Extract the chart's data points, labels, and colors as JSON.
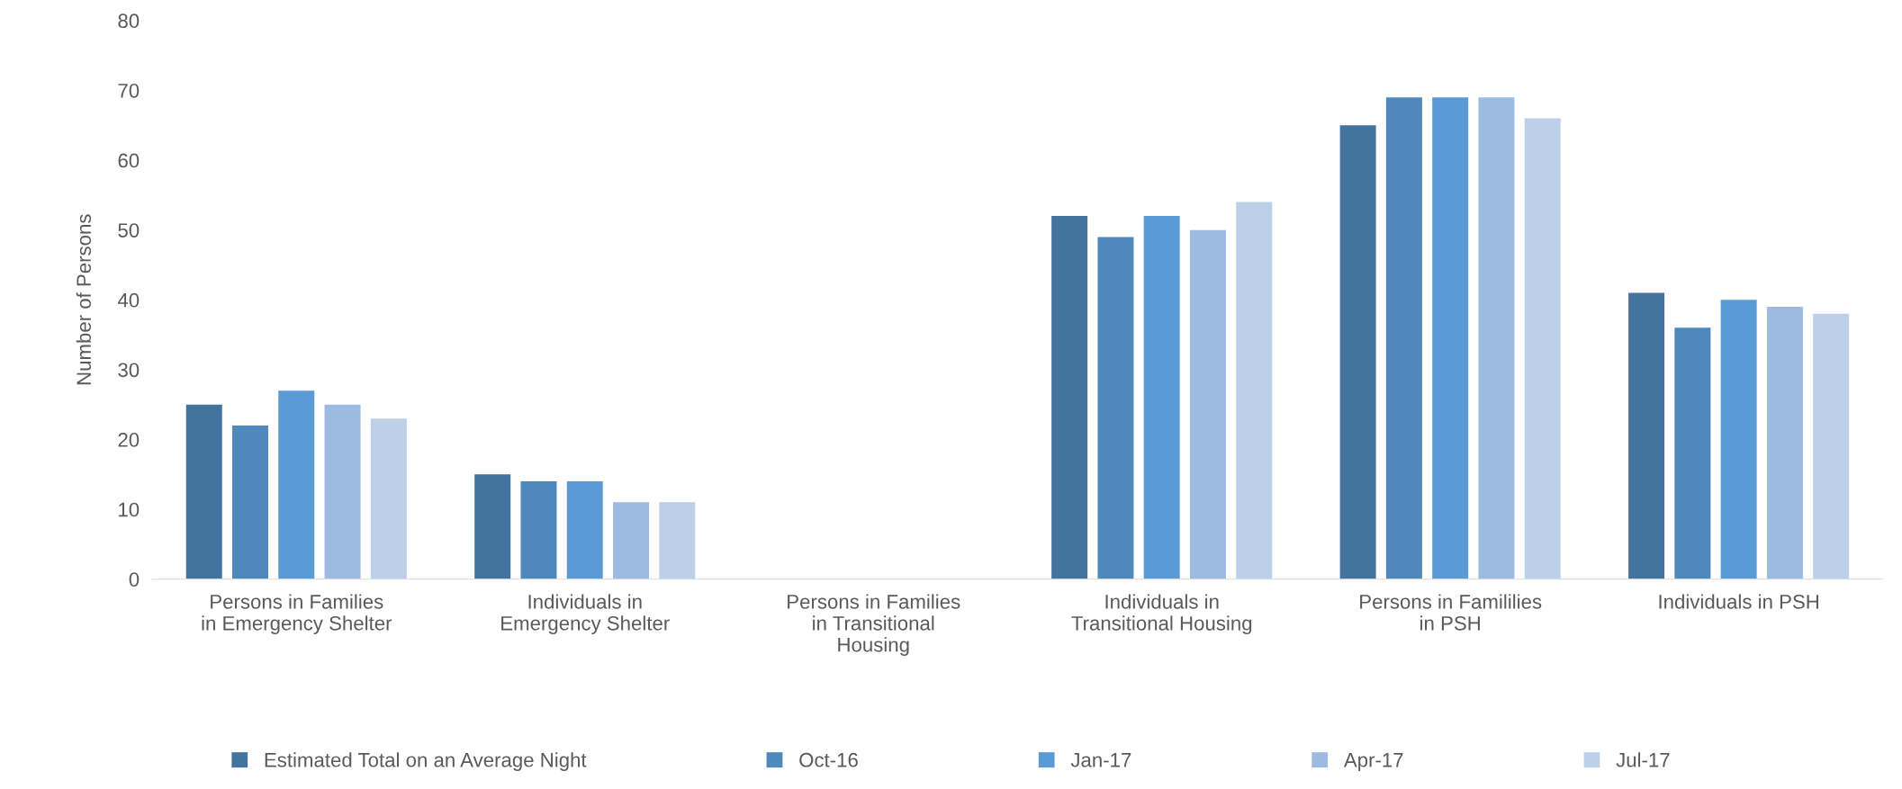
{
  "chart_data": {
    "type": "bar",
    "ylabel": "Number of Persons",
    "categories": [
      "Persons in Families in Emergency Shelter",
      "Individuals in Emergency Shelter",
      "Persons in Families in Transitional Housing",
      "Individuals in Transitional Housing",
      "Persons in Famililies in PSH",
      "Individuals in PSH"
    ],
    "series": [
      {
        "name": "Estimated Total on an Average Night",
        "color": "#44739f",
        "values": [
          25,
          15,
          0,
          52,
          65,
          41
        ]
      },
      {
        "name": "Oct-16",
        "color": "#4f88bb",
        "values": [
          22,
          14,
          0,
          49,
          69,
          36
        ]
      },
      {
        "name": "Jan-17",
        "color": "#5b9bd5",
        "values": [
          27,
          14,
          0,
          52,
          69,
          40
        ]
      },
      {
        "name": "Apr-17",
        "color": "#9dbae0",
        "values": [
          25,
          11,
          0,
          50,
          69,
          39
        ]
      },
      {
        "name": "Jul-17",
        "color": "#bdd0ea",
        "values": [
          23,
          11,
          0,
          54,
          66,
          38
        ]
      }
    ],
    "ylim": [
      0,
      80
    ],
    "yticks": [
      0,
      10,
      20,
      30,
      40,
      50,
      60,
      70,
      80
    ],
    "grid": false,
    "legend": "bottom"
  }
}
